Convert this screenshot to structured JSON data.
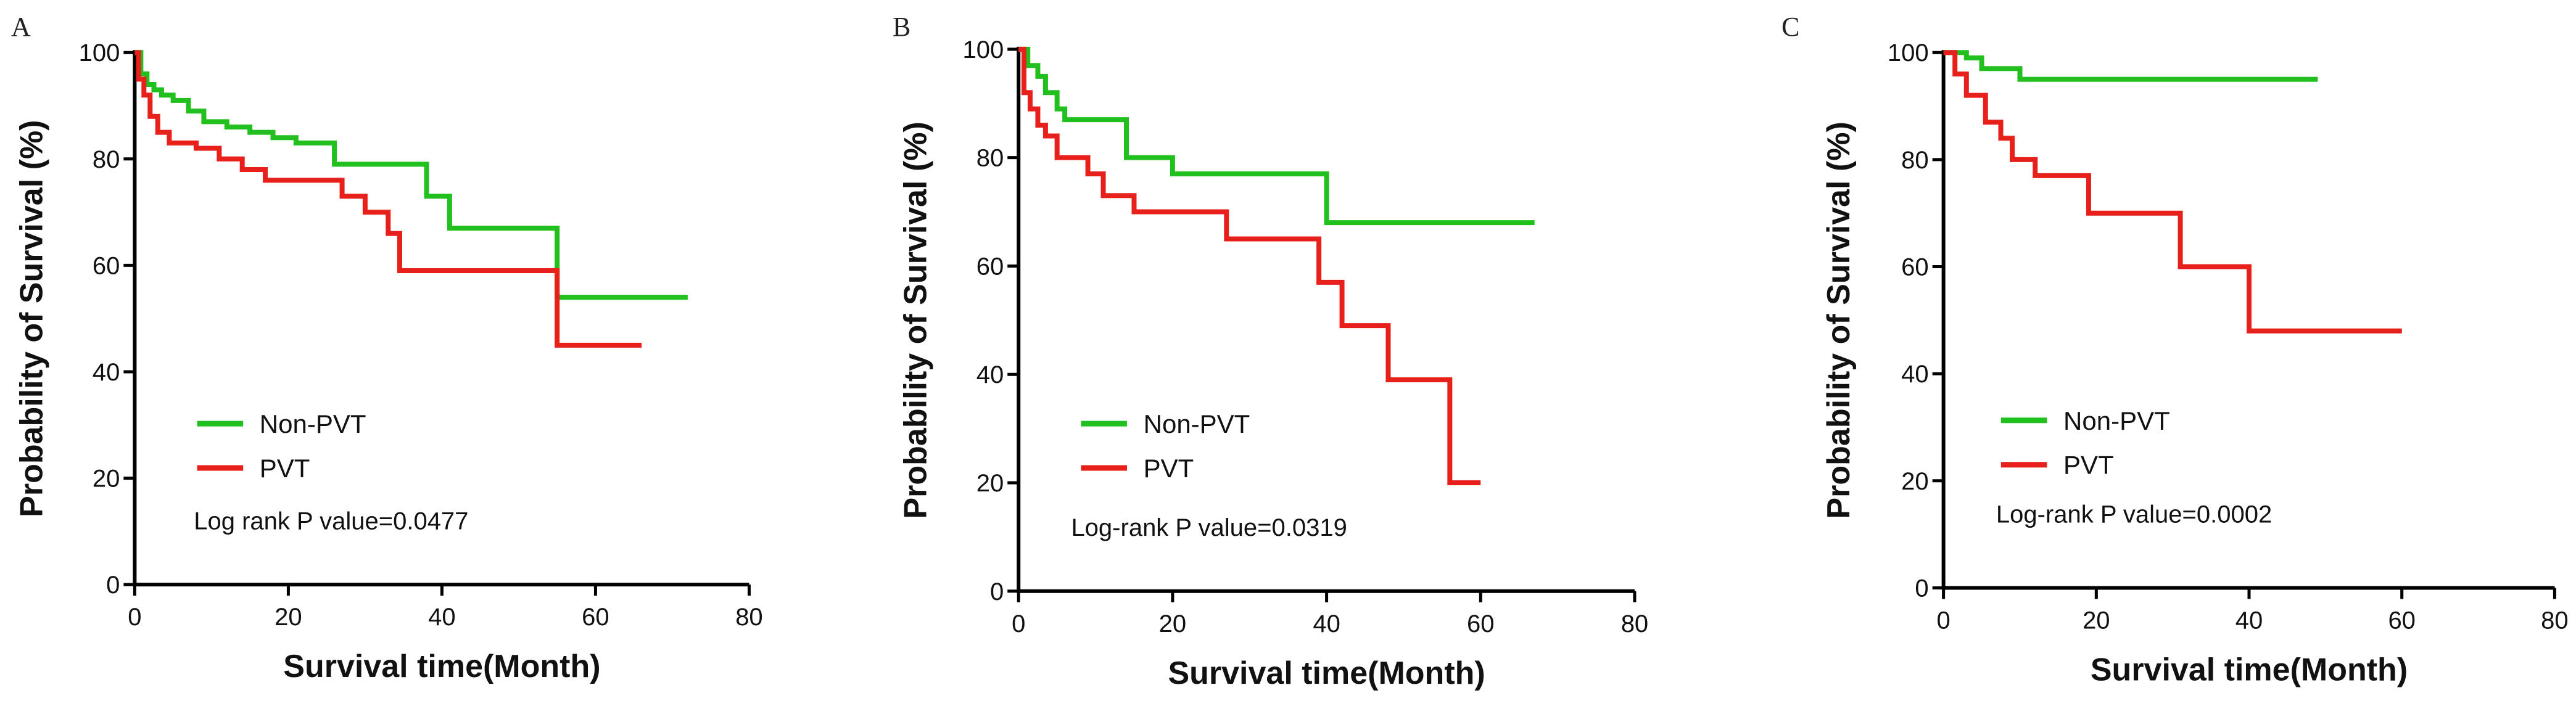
{
  "colors": {
    "nonpvt": "#22c01e",
    "pvt": "#e8201c",
    "axis": "#000000"
  },
  "chart_data": [
    {
      "type": "line",
      "subtype": "kaplan-meier",
      "panel": "A",
      "title": "",
      "xlabel": "Survival time(Month)",
      "ylabel": "Probability of Survival (%)",
      "xlim": [
        0,
        80
      ],
      "ylim": [
        0,
        100
      ],
      "xticks": [
        "0",
        "20",
        "40",
        "60",
        "80"
      ],
      "yticks": [
        "0",
        "20",
        "40",
        "60",
        "80",
        "100"
      ],
      "legend": [
        "Non-PVT",
        "PVT"
      ],
      "annotation": "Log rank P value=0.0477",
      "series": [
        {
          "name": "Non-PVT",
          "color": "#22c01e",
          "x": [
            0,
            0.8,
            1.6,
            2.5,
            3.5,
            5,
            7,
            9,
            12,
            15,
            18,
            21,
            26,
            38,
            41,
            55,
            72
          ],
          "y": [
            100,
            96,
            94,
            93,
            92,
            91,
            89,
            87,
            86,
            85,
            84,
            83,
            79,
            73,
            67,
            54,
            54
          ]
        },
        {
          "name": "PVT",
          "color": "#e8201c",
          "x": [
            0,
            0.5,
            1.2,
            2,
            3,
            4.5,
            8,
            11,
            14,
            17,
            27,
            30,
            33,
            34.5,
            55,
            66
          ],
          "y": [
            100,
            95,
            92,
            88,
            85,
            83,
            82,
            80,
            78,
            76,
            73,
            70,
            66,
            59,
            45,
            45
          ]
        }
      ]
    },
    {
      "type": "line",
      "subtype": "kaplan-meier",
      "panel": "B",
      "title": "",
      "xlabel": "Survival time(Month)",
      "ylabel": "Probability of Survival (%)",
      "xlim": [
        0,
        80
      ],
      "ylim": [
        0,
        100
      ],
      "xticks": [
        "0",
        "20",
        "40",
        "60",
        "80"
      ],
      "yticks": [
        "0",
        "20",
        "40",
        "60",
        "80",
        "100"
      ],
      "legend": [
        "Non-PVT",
        "PVT"
      ],
      "annotation": "Log-rank P value=0.0319",
      "series": [
        {
          "name": "Non-PVT",
          "color": "#22c01e",
          "x": [
            0,
            1.2,
            2.5,
            3.5,
            5,
            6,
            14,
            20,
            40,
            67
          ],
          "y": [
            100,
            97,
            95,
            92,
            89,
            87,
            80,
            77,
            68,
            68
          ]
        },
        {
          "name": "PVT",
          "color": "#e8201c",
          "x": [
            0,
            0.7,
            1.5,
            2.5,
            3.5,
            5,
            9,
            11,
            15,
            27,
            39,
            42,
            48,
            56,
            60
          ],
          "y": [
            100,
            92,
            89,
            86,
            84,
            80,
            77,
            73,
            70,
            65,
            57,
            49,
            39,
            20,
            20
          ]
        }
      ]
    },
    {
      "type": "line",
      "subtype": "kaplan-meier",
      "panel": "C",
      "title": "",
      "xlabel": "Survival time(Month)",
      "ylabel": "Probability of Survival (%)",
      "xlim": [
        0,
        80
      ],
      "ylim": [
        0,
        100
      ],
      "xticks": [
        "0",
        "20",
        "40",
        "60",
        "80"
      ],
      "yticks": [
        "0",
        "20",
        "40",
        "60",
        "80",
        "100"
      ],
      "legend": [
        "Non-PVT",
        "PVT"
      ],
      "annotation": "Log-rank P value=0.0002",
      "series": [
        {
          "name": "Non-PVT",
          "color": "#22c01e",
          "x": [
            0,
            3,
            5,
            10,
            49
          ],
          "y": [
            100,
            99,
            97,
            95,
            95
          ]
        },
        {
          "name": "PVT",
          "color": "#e8201c",
          "x": [
            0,
            1.5,
            3,
            5.5,
            7.5,
            9,
            12,
            19,
            31,
            40,
            60
          ],
          "y": [
            100,
            96,
            92,
            87,
            84,
            80,
            77,
            70,
            60,
            48,
            48
          ]
        }
      ]
    }
  ]
}
